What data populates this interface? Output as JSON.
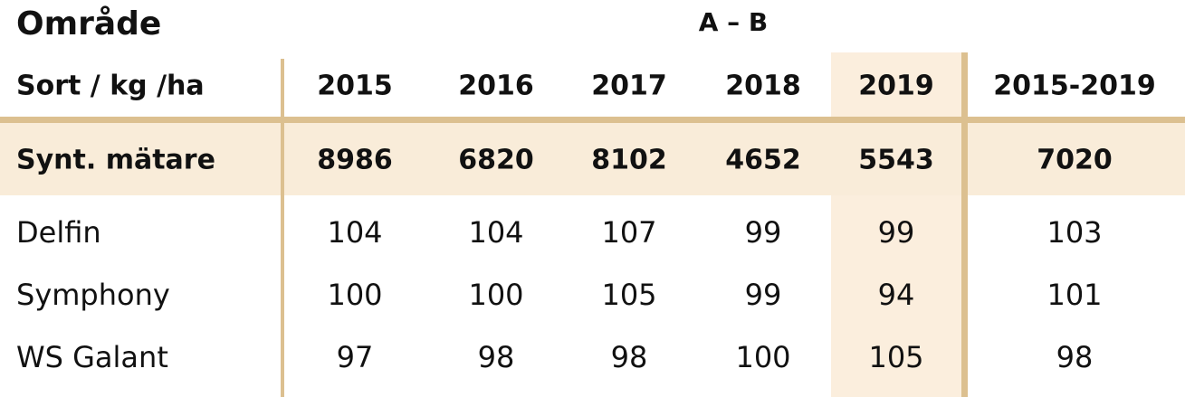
{
  "header": {
    "title": "Område",
    "subtitle": "A – B"
  },
  "table": {
    "columns": [
      "Sort / kg /ha",
      "2015",
      "2016",
      "2017",
      "2018",
      "2019",
      "2015-2019"
    ],
    "rows": [
      [
        "Synt. mätare",
        8986,
        6820,
        8102,
        4652,
        5543,
        7020
      ],
      [
        "Delfin",
        104,
        104,
        107,
        99,
        99,
        103
      ],
      [
        "Symphony",
        100,
        100,
        105,
        99,
        94,
        101
      ],
      [
        "WS Galant",
        97,
        98,
        98,
        100,
        105,
        98
      ]
    ]
  }
}
